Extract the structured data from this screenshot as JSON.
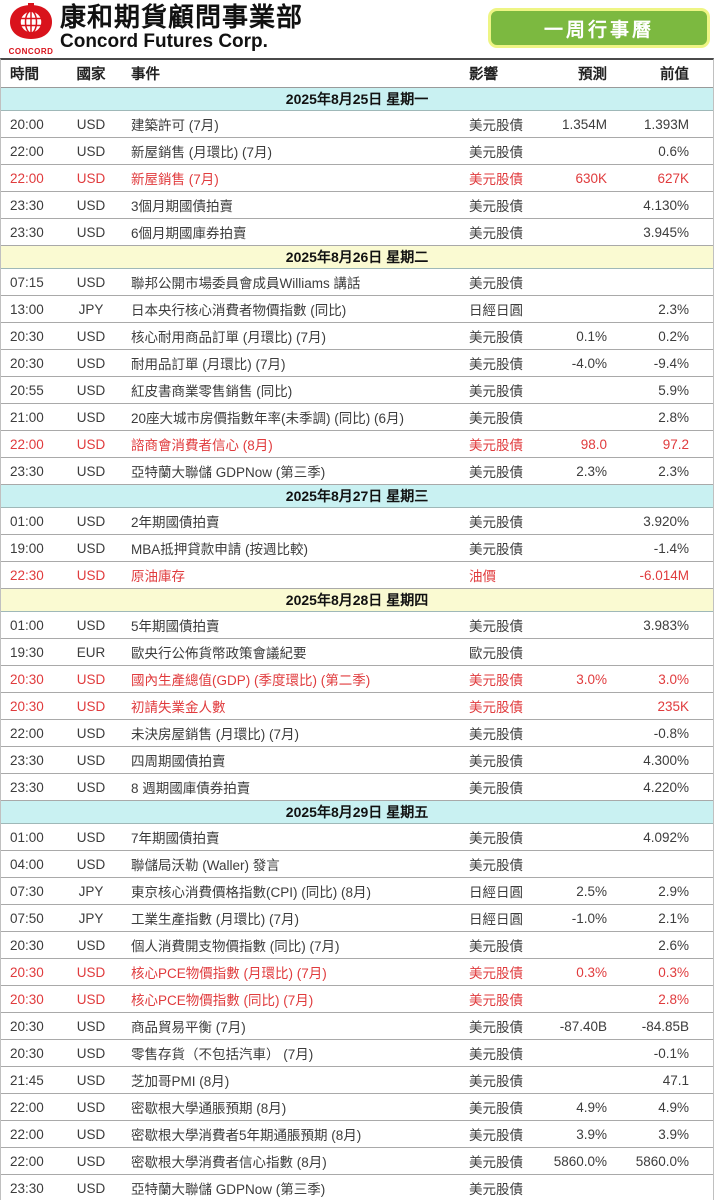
{
  "header": {
    "brand_word": "CONCORD",
    "title_zh": "康和期貨顧問事業部",
    "title_en": "Concord Futures Corp.",
    "banner_button": "一周行事曆"
  },
  "colors": {
    "band_cyan": "#c9f1f2",
    "band_yellow": "#fafad2",
    "highlight_red": "#e03b3d",
    "button_green": "#7cb940",
    "button_border": "#eef584",
    "logo_red": "#d9131c"
  },
  "table": {
    "columns": [
      "時間",
      "國家",
      "事件",
      "影響",
      "預測",
      "前值"
    ],
    "days": [
      {
        "date": "2025年8月25日  星期一",
        "band": "cyan",
        "rows": [
          {
            "time": "20:00",
            "country": "USD",
            "event": "建築許可 (7月)",
            "impact": "美元股債",
            "forecast": "1.354M",
            "previous": "1.393M",
            "highlight": false
          },
          {
            "time": "22:00",
            "country": "USD",
            "event": "新屋銷售 (月環比) (7月)",
            "impact": "美元股債",
            "forecast": "",
            "previous": "0.6%",
            "highlight": false
          },
          {
            "time": "22:00",
            "country": "USD",
            "event": "新屋銷售 (7月)",
            "impact": "美元股債",
            "forecast": "630K",
            "previous": "627K",
            "highlight": true
          },
          {
            "time": "23:30",
            "country": "USD",
            "event": "3個月期國債拍賣",
            "impact": "美元股債",
            "forecast": "",
            "previous": "4.130%",
            "highlight": false
          },
          {
            "time": "23:30",
            "country": "USD",
            "event": "6個月期國庫券拍賣",
            "impact": "美元股債",
            "forecast": "",
            "previous": "3.945%",
            "highlight": false
          }
        ]
      },
      {
        "date": "2025年8月26日  星期二",
        "band": "yellow",
        "rows": [
          {
            "time": "07:15",
            "country": "USD",
            "event": "聯邦公開市場委員會成員Williams 講話",
            "impact": "美元股債",
            "forecast": "",
            "previous": "",
            "highlight": false
          },
          {
            "time": "13:00",
            "country": "JPY",
            "event": "日本央行核心消費者物價指數 (同比)",
            "impact": "日經日圓",
            "forecast": "",
            "previous": "2.3%",
            "highlight": false
          },
          {
            "time": "20:30",
            "country": "USD",
            "event": "核心耐用商品訂單 (月環比) (7月)",
            "impact": "美元股債",
            "forecast": "0.1%",
            "previous": "0.2%",
            "highlight": false
          },
          {
            "time": "20:30",
            "country": "USD",
            "event": "耐用品訂單 (月環比) (7月)",
            "impact": "美元股債",
            "forecast": "-4.0%",
            "previous": "-9.4%",
            "highlight": false
          },
          {
            "time": "20:55",
            "country": "USD",
            "event": "紅皮書商業零售銷售 (同比)",
            "impact": "美元股債",
            "forecast": "",
            "previous": "5.9%",
            "highlight": false
          },
          {
            "time": "21:00",
            "country": "USD",
            "event": "20座大城市房價指數年率(未季調) (同比) (6月)",
            "impact": "美元股債",
            "forecast": "",
            "previous": "2.8%",
            "highlight": false
          },
          {
            "time": "22:00",
            "country": "USD",
            "event": "諮商會消費者信心 (8月)",
            "impact": "美元股債",
            "forecast": "98.0",
            "previous": "97.2",
            "highlight": true
          },
          {
            "time": "23:30",
            "country": "USD",
            "event": "亞特蘭大聯儲 GDPNow (第三季)",
            "impact": "美元股債",
            "forecast": "2.3%",
            "previous": "2.3%",
            "highlight": false
          }
        ]
      },
      {
        "date": "2025年8月27日  星期三",
        "band": "cyan",
        "rows": [
          {
            "time": "01:00",
            "country": "USD",
            "event": "2年期國債拍賣",
            "impact": "美元股債",
            "forecast": "",
            "previous": "3.920%",
            "highlight": false
          },
          {
            "time": "19:00",
            "country": "USD",
            "event": "MBA抵押貸款申請 (按週比較)",
            "impact": "美元股債",
            "forecast": "",
            "previous": "-1.4%",
            "highlight": false
          },
          {
            "time": "22:30",
            "country": "USD",
            "event": "原油庫存",
            "impact": "油價",
            "forecast": "",
            "previous": "-6.014M",
            "highlight": true
          }
        ]
      },
      {
        "date": "2025年8月28日  星期四",
        "band": "yellow",
        "rows": [
          {
            "time": "01:00",
            "country": "USD",
            "event": "5年期國債拍賣",
            "impact": "美元股債",
            "forecast": "",
            "previous": "3.983%",
            "highlight": false
          },
          {
            "time": "19:30",
            "country": "EUR",
            "event": "歐央行公佈貨幣政策會議紀要",
            "impact": "歐元股債",
            "forecast": "",
            "previous": "",
            "highlight": false
          },
          {
            "time": "20:30",
            "country": "USD",
            "event": "國內生產總值(GDP) (季度環比) (第二季)",
            "impact": "美元股債",
            "forecast": "3.0%",
            "previous": "3.0%",
            "highlight": true
          },
          {
            "time": "20:30",
            "country": "USD",
            "event": "初請失業金人數",
            "impact": "美元股債",
            "forecast": "",
            "previous": "235K",
            "highlight": true
          },
          {
            "time": "22:00",
            "country": "USD",
            "event": "未決房屋銷售 (月環比) (7月)",
            "impact": "美元股債",
            "forecast": "",
            "previous": "-0.8%",
            "highlight": false
          },
          {
            "time": "23:30",
            "country": "USD",
            "event": "四周期國債拍賣",
            "impact": "美元股債",
            "forecast": "",
            "previous": "4.300%",
            "highlight": false
          },
          {
            "time": "23:30",
            "country": "USD",
            "event": "8 週期國庫債券拍賣",
            "impact": "美元股債",
            "forecast": "",
            "previous": "4.220%",
            "highlight": false
          }
        ]
      },
      {
        "date": "2025年8月29日  星期五",
        "band": "cyan",
        "rows": [
          {
            "time": "01:00",
            "country": "USD",
            "event": "7年期國債拍賣",
            "impact": "美元股債",
            "forecast": "",
            "previous": "4.092%",
            "highlight": false
          },
          {
            "time": "04:00",
            "country": "USD",
            "event": "聯儲局沃勒 (Waller) 發言",
            "impact": "美元股債",
            "forecast": "",
            "previous": "",
            "highlight": false
          },
          {
            "time": "07:30",
            "country": "JPY",
            "event": "東京核心消費價格指數(CPI) (同比) (8月)",
            "impact": "日經日圓",
            "forecast": "2.5%",
            "previous": "2.9%",
            "highlight": false
          },
          {
            "time": "07:50",
            "country": "JPY",
            "event": "工業生產指數 (月環比) (7月)",
            "impact": "日經日圓",
            "forecast": "-1.0%",
            "previous": "2.1%",
            "highlight": false
          },
          {
            "time": "20:30",
            "country": "USD",
            "event": "個人消費開支物價指數 (同比) (7月)",
            "impact": "美元股債",
            "forecast": "",
            "previous": "2.6%",
            "highlight": false
          },
          {
            "time": "20:30",
            "country": "USD",
            "event": "核心PCE物價指數 (月環比) (7月)",
            "impact": "美元股債",
            "forecast": "0.3%",
            "previous": "0.3%",
            "highlight": true
          },
          {
            "time": "20:30",
            "country": "USD",
            "event": "核心PCE物價指數 (同比) (7月)",
            "impact": "美元股債",
            "forecast": "",
            "previous": "2.8%",
            "highlight": true
          },
          {
            "time": "20:30",
            "country": "USD",
            "event": "商品貿易平衡 (7月)",
            "impact": "美元股債",
            "forecast": "-87.40B",
            "previous": "-84.85B",
            "highlight": false
          },
          {
            "time": "20:30",
            "country": "USD",
            "event": "零售存貨（不包括汽車） (7月)",
            "impact": "美元股債",
            "forecast": "",
            "previous": "-0.1%",
            "highlight": false
          },
          {
            "time": "21:45",
            "country": "USD",
            "event": "芝加哥PMI (8月)",
            "impact": "美元股債",
            "forecast": "",
            "previous": "47.1",
            "highlight": false
          },
          {
            "time": "22:00",
            "country": "USD",
            "event": "密歇根大學通脹預期 (8月)",
            "impact": "美元股債",
            "forecast": "4.9%",
            "previous": "4.9%",
            "highlight": false
          },
          {
            "time": "22:00",
            "country": "USD",
            "event": "密歇根大學消費者5年期通脹預期 (8月)",
            "impact": "美元股債",
            "forecast": "3.9%",
            "previous": "3.9%",
            "highlight": false
          },
          {
            "time": "22:00",
            "country": "USD",
            "event": "密歇根大學消費者信心指數 (8月)",
            "impact": "美元股債",
            "forecast": "5860.0%",
            "previous": "5860.0%",
            "highlight": false
          },
          {
            "time": "23:30",
            "country": "USD",
            "event": "亞特蘭大聯儲 GDPNow (第三季)",
            "impact": "美元股債",
            "forecast": "",
            "previous": "",
            "highlight": false
          }
        ]
      }
    ]
  }
}
